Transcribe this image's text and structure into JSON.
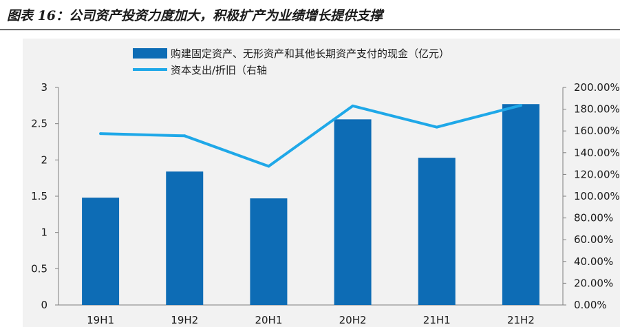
{
  "figure": {
    "title": "图表 16：公司资产投资力度加大，积极扩产为业绩增长提供支撑"
  },
  "colors": {
    "bar": "#0d6cb5",
    "line": "#1fa8e8",
    "panel": "#f2f2f2",
    "axis": "#7f7f7f"
  },
  "chart_data": {
    "type": "bar",
    "categories": [
      "19H1",
      "19H2",
      "20H1",
      "20H2",
      "21H1",
      "21H2"
    ],
    "series": [
      {
        "name": "购建固定资产、无形资产和其他长期资产支付的现金（亿元）",
        "type": "bar",
        "axis": "left",
        "values": [
          1.48,
          1.84,
          1.47,
          2.56,
          2.03,
          2.77
        ]
      },
      {
        "name": "资本支出/折旧（右轴",
        "type": "line",
        "axis": "right",
        "values": [
          157.5,
          155.5,
          127.5,
          183,
          163.5,
          183.5
        ]
      }
    ],
    "left_axis": {
      "ylim": [
        0,
        3
      ],
      "ticks": [
        "0",
        "0.5",
        "1",
        "1.5",
        "2",
        "2.5",
        "3"
      ]
    },
    "right_axis": {
      "ylim": [
        0,
        200
      ],
      "ticks": [
        "0.00%",
        "20.00%",
        "40.00%",
        "60.00%",
        "80.00%",
        "100.00%",
        "120.00%",
        "140.00%",
        "160.00%",
        "180.00%",
        "200.00%"
      ]
    },
    "legend_position": "top",
    "grid": false
  }
}
